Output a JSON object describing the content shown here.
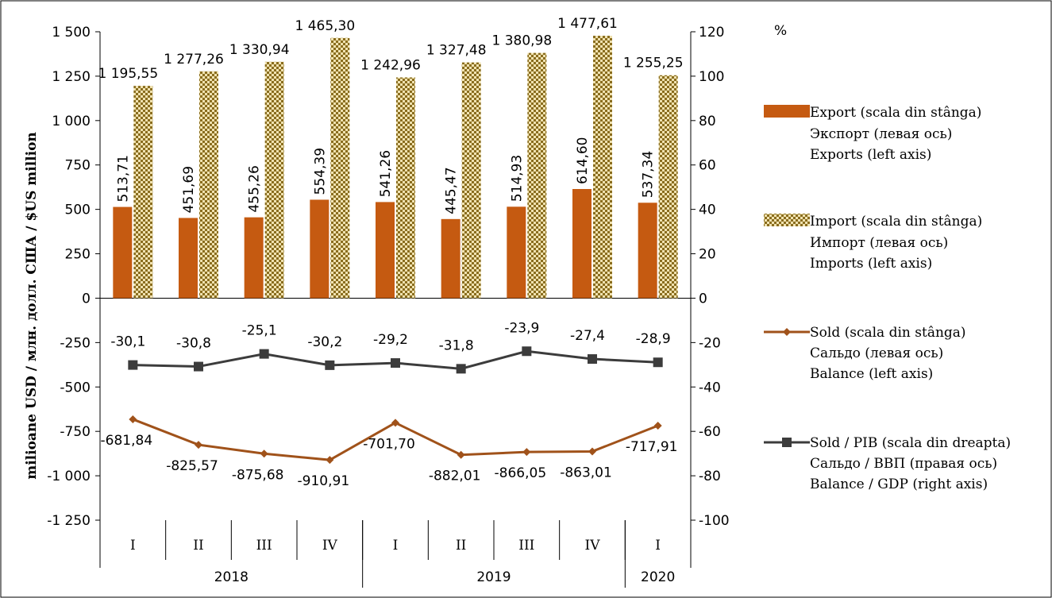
{
  "chart_data": {
    "type": "bar",
    "y_left_label": "milioane USD / млн. долл. США / $US million",
    "y_right_unit": "%",
    "y_left_ticks": [
      "1 500",
      "1 250",
      "1 000",
      "750",
      "500",
      "250",
      "0",
      "-250",
      "-500",
      "-750",
      "-1 000",
      "-1 250"
    ],
    "y_right_ticks": [
      "120",
      "100",
      "80",
      "60",
      "40",
      "20",
      "0",
      "-20",
      "-40",
      "-60",
      "-80",
      "-100"
    ],
    "y_left_range": [
      -1250,
      1500
    ],
    "y_right_range": [
      -100,
      120
    ],
    "quarters": [
      "I",
      "II",
      "III",
      "IV",
      "I",
      "II",
      "III",
      "IV",
      "I"
    ],
    "years": [
      {
        "label": "2018",
        "span": 4
      },
      {
        "label": "2019",
        "span": 4
      },
      {
        "label": "2020",
        "span": 1
      }
    ],
    "series": [
      {
        "name": "Export (scala din stânga)",
        "name_ru": "Экспорт (левая ось)",
        "name_en": "Exports (left axis)",
        "axis": "left",
        "values": [
          513.71,
          451.69,
          455.26,
          554.39,
          541.26,
          445.47,
          514.93,
          614.6,
          537.34
        ],
        "labels": [
          "513,71",
          "451,69",
          "455,26",
          "554,39",
          "541,26",
          "445,47",
          "514,93",
          "614,60",
          "537,34"
        ]
      },
      {
        "name": "Import (scala din stânga)",
        "name_ru": "Импорт (левая ось)",
        "name_en": "Imports (left axis)",
        "axis": "left",
        "values": [
          1195.55,
          1277.26,
          1330.94,
          1465.3,
          1242.96,
          1327.48,
          1380.98,
          1477.61,
          1255.25
        ],
        "labels": [
          "1 195,55",
          "1 277,26",
          "1 330,94",
          "1 465,30",
          "1 242,96",
          "1 327,48",
          "1 380,98",
          "1 477,61",
          "1 255,25"
        ]
      },
      {
        "name": "Sold (scala din stânga)",
        "name_ru": "Сальдо (левая ось)",
        "name_en": "Balance (left axis)",
        "axis": "left",
        "values": [
          -681.84,
          -825.57,
          -875.68,
          -910.91,
          -701.7,
          -882.01,
          -866.05,
          -863.01,
          -717.91
        ],
        "labels": [
          "-681,84",
          "-825,57",
          "-875,68",
          "-910,91",
          "-701,70",
          "-882,01",
          "-866,05",
          "-863,01",
          "-717,91"
        ]
      },
      {
        "name": "Sold / PIB (scala din dreapta)",
        "name_ru": "Сальдо / ВВП (правая ось)",
        "name_en": "Balance / GDP (right axis)",
        "axis": "right",
        "values": [
          -30.1,
          -30.8,
          -25.1,
          -30.2,
          -29.2,
          -31.8,
          -23.9,
          -27.4,
          -28.9
        ],
        "labels": [
          "-30,1",
          "-30,8",
          "-25,1",
          "-30,2",
          "-29,2",
          "-31,8",
          "-23,9",
          "-27,4",
          "-28,9"
        ]
      }
    ],
    "colors": {
      "export": "#c55a11",
      "import_fill": "#f0e2b0",
      "import_pattern": "#8a6d1e",
      "sold": "#a0521a",
      "gdp": "#3c3c3c"
    },
    "legend_position": "right"
  }
}
